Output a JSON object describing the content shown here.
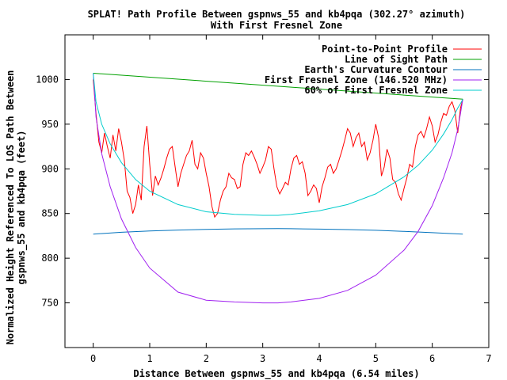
{
  "chart_data": {
    "type": "line",
    "title_line1": "SPLAT! Path Profile Between gspnws_55 and kb4pqa (302.27° azimuth)",
    "title_line2": "With First Fresnel Zone",
    "xlabel": "Distance Between gspnws_55 and kb4pqa (6.54 miles)",
    "ylabel_line1": "Normalized Height Referenced To LOS Path Between",
    "ylabel_line2": "gspnws_55 and kb4pqa (feet)",
    "xlim": [
      -0.5,
      7
    ],
    "ylim": [
      700,
      1050
    ],
    "x_ticks": [
      0,
      1,
      2,
      3,
      4,
      5,
      6,
      7
    ],
    "y_ticks": [
      750,
      800,
      850,
      900,
      950,
      1000
    ],
    "grid": false,
    "legend_position": "top-right",
    "series": [
      {
        "name": "Point-to-Point Profile",
        "color": "#ff0000",
        "x": [
          0.0,
          0.05,
          0.1,
          0.15,
          0.2,
          0.25,
          0.3,
          0.35,
          0.4,
          0.45,
          0.5,
          0.55,
          0.6,
          0.65,
          0.7,
          0.75,
          0.8,
          0.85,
          0.9,
          0.95,
          1.0,
          1.05,
          1.1,
          1.15,
          1.2,
          1.25,
          1.3,
          1.35,
          1.4,
          1.45,
          1.5,
          1.55,
          1.6,
          1.65,
          1.7,
          1.75,
          1.8,
          1.85,
          1.9,
          1.95,
          2.0,
          2.05,
          2.1,
          2.15,
          2.2,
          2.25,
          2.3,
          2.35,
          2.4,
          2.45,
          2.5,
          2.55,
          2.6,
          2.65,
          2.7,
          2.75,
          2.8,
          2.85,
          2.9,
          2.95,
          3.0,
          3.05,
          3.1,
          3.15,
          3.2,
          3.25,
          3.3,
          3.35,
          3.4,
          3.45,
          3.5,
          3.55,
          3.6,
          3.65,
          3.7,
          3.75,
          3.8,
          3.85,
          3.9,
          3.95,
          4.0,
          4.05,
          4.1,
          4.15,
          4.2,
          4.25,
          4.3,
          4.35,
          4.4,
          4.45,
          4.5,
          4.55,
          4.6,
          4.65,
          4.7,
          4.75,
          4.8,
          4.85,
          4.9,
          4.95,
          5.0,
          5.05,
          5.1,
          5.15,
          5.2,
          5.25,
          5.3,
          5.35,
          5.4,
          5.45,
          5.5,
          5.55,
          5.6,
          5.65,
          5.7,
          5.75,
          5.8,
          5.85,
          5.9,
          5.95,
          6.0,
          6.05,
          6.1,
          6.15,
          6.2,
          6.25,
          6.3,
          6.35,
          6.4,
          6.45,
          6.5,
          6.54
        ],
        "values": [
          1000,
          962,
          930,
          918,
          940,
          925,
          912,
          938,
          920,
          945,
          930,
          910,
          875,
          868,
          850,
          860,
          882,
          865,
          925,
          948,
          905,
          870,
          892,
          882,
          890,
          900,
          912,
          922,
          925,
          902,
          880,
          895,
          905,
          915,
          920,
          932,
          905,
          900,
          918,
          912,
          895,
          880,
          858,
          846,
          850,
          865,
          875,
          880,
          895,
          890,
          888,
          878,
          880,
          905,
          918,
          915,
          920,
          913,
          905,
          895,
          902,
          910,
          925,
          922,
          900,
          880,
          872,
          878,
          885,
          882,
          900,
          912,
          915,
          905,
          908,
          895,
          870,
          875,
          882,
          878,
          862,
          880,
          890,
          902,
          905,
          895,
          900,
          910,
          920,
          932,
          945,
          940,
          925,
          935,
          940,
          925,
          930,
          910,
          918,
          932,
          950,
          935,
          892,
          902,
          922,
          912,
          888,
          885,
          872,
          865,
          878,
          890,
          905,
          902,
          925,
          938,
          942,
          935,
          945,
          958,
          948,
          930,
          938,
          952,
          962,
          960,
          970,
          975,
          965,
          940,
          968,
          978
        ]
      },
      {
        "name": "Line of Sight Path",
        "color": "#00a000",
        "x": [
          0,
          6.54
        ],
        "values": [
          1007,
          978
        ]
      },
      {
        "name": "Earth's Curvature Contour",
        "color": "#0072bd",
        "x": [
          0,
          0.5,
          1.0,
          1.5,
          2.0,
          2.5,
          3.0,
          3.27,
          3.5,
          4.0,
          4.5,
          5.0,
          5.5,
          6.0,
          6.54
        ],
        "values": [
          827,
          829,
          830.5,
          831.5,
          832.3,
          832.8,
          833.0,
          833.1,
          833.0,
          832.6,
          832.0,
          831.2,
          830.0,
          828.6,
          827
        ]
      },
      {
        "name": "First Fresnel Zone (146.520 MHz)",
        "color": "#a020f0",
        "x": [
          0,
          0.05,
          0.15,
          0.3,
          0.5,
          0.75,
          1.0,
          1.5,
          2.0,
          2.5,
          3.0,
          3.27,
          3.5,
          4.0,
          4.5,
          5.0,
          5.5,
          5.75,
          6.0,
          6.2,
          6.35,
          6.45,
          6.5,
          6.54
        ],
        "values": [
          1007,
          958,
          917,
          880,
          844,
          812,
          789,
          762,
          753,
          751,
          750,
          750,
          751,
          755,
          764,
          781,
          809,
          830,
          859,
          890,
          918,
          944,
          962,
          978
        ]
      },
      {
        "name": "60% of First Fresnel Zone",
        "color": "#00cccc",
        "x": [
          0,
          0.05,
          0.15,
          0.3,
          0.5,
          0.75,
          1.0,
          1.5,
          2.0,
          2.5,
          3.0,
          3.27,
          3.5,
          4.0,
          4.5,
          5.0,
          5.5,
          5.75,
          6.0,
          6.2,
          6.35,
          6.45,
          6.5,
          6.54
        ],
        "values": [
          1007,
          975,
          950,
          928,
          907,
          888,
          875,
          860,
          852,
          849,
          848,
          848,
          849,
          853,
          860,
          872,
          891,
          904,
          921,
          939,
          955,
          968,
          973,
          978
        ]
      }
    ]
  }
}
